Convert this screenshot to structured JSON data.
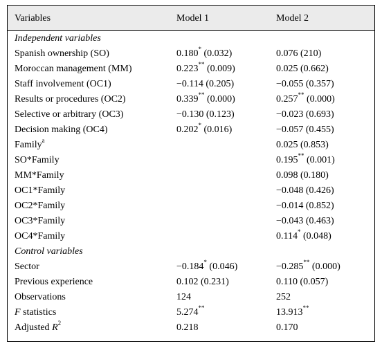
{
  "header": {
    "col1": "Variables",
    "col2": "Model 1",
    "col3": "Model 2"
  },
  "rows": [
    {
      "type": "section",
      "label": "Independent variables"
    },
    {
      "label": "Spanish ownership (SO)",
      "m1": "0.180",
      "m1_sup": "*",
      "m1_p": " (0.032)",
      "m2": "0.076 (210)",
      "m2_sup": "",
      "m2_p": ""
    },
    {
      "label": "Moroccan management (MM)",
      "m1": "0.223",
      "m1_sup": "**",
      "m1_p": " (0.009)",
      "m2": "0.025 (0.662)",
      "m2_sup": "",
      "m2_p": ""
    },
    {
      "label": "Staff involvement (OC1)",
      "m1": "−0.114 (0.205)",
      "m1_sup": "",
      "m1_p": "",
      "m2": "−0.055 (0.357)",
      "m2_sup": "",
      "m2_p": ""
    },
    {
      "label": "Results or procedures (OC2)",
      "m1": "0.339",
      "m1_sup": "**",
      "m1_p": " (0.000)",
      "m2": "0.257",
      "m2_sup": "**",
      "m2_p": " (0.000)"
    },
    {
      "label": "Selective or arbitrary (OC3)",
      "m1": "−0.130 (0.123)",
      "m1_sup": "",
      "m1_p": "",
      "m2": "−0.023 (0.693)",
      "m2_sup": "",
      "m2_p": ""
    },
    {
      "label": "Decision making (OC4)",
      "m1": "0.202",
      "m1_sup": "*",
      "m1_p": " (0.016)",
      "m2": "−0.057 (0.455)",
      "m2_sup": "",
      "m2_p": ""
    },
    {
      "label": "Family",
      "label_sup": "a",
      "m1": "",
      "m1_sup": "",
      "m1_p": "",
      "m2": "0.025 (0.853)",
      "m2_sup": "",
      "m2_p": ""
    },
    {
      "label": "SO*Family",
      "m1": "",
      "m1_sup": "",
      "m1_p": "",
      "m2": "0.195",
      "m2_sup": "**",
      "m2_p": " (0.001)"
    },
    {
      "label": "MM*Family",
      "m1": "",
      "m1_sup": "",
      "m1_p": "",
      "m2": "0.098 (0.180)",
      "m2_sup": "",
      "m2_p": ""
    },
    {
      "label": "OC1*Family",
      "m1": "",
      "m1_sup": "",
      "m1_p": "",
      "m2": "−0.048 (0.426)",
      "m2_sup": "",
      "m2_p": ""
    },
    {
      "label": "OC2*Family",
      "m1": "",
      "m1_sup": "",
      "m1_p": "",
      "m2": "−0.014 (0.852)",
      "m2_sup": "",
      "m2_p": ""
    },
    {
      "label": "OC3*Family",
      "m1": "",
      "m1_sup": "",
      "m1_p": "",
      "m2": "−0.043 (0.463)",
      "m2_sup": "",
      "m2_p": ""
    },
    {
      "label": "OC4*Family",
      "m1": "",
      "m1_sup": "",
      "m1_p": "",
      "m2": "0.114",
      "m2_sup": "*",
      "m2_p": " (0.048)"
    },
    {
      "type": "section",
      "label": "Control variables"
    },
    {
      "label": "Sector",
      "m1": "−0.184",
      "m1_sup": "*",
      "m1_p": " (0.046)",
      "m2": "−0.285",
      "m2_sup": "**",
      "m2_p": " (0.000)"
    },
    {
      "label": "Previous experience",
      "m1": "0.102 (0.231)",
      "m1_sup": "",
      "m1_p": "",
      "m2": "0.110 (0.057)",
      "m2_sup": "",
      "m2_p": ""
    },
    {
      "label": "Observations",
      "m1": "124",
      "m1_sup": "",
      "m1_p": "",
      "m2": "252",
      "m2_sup": "",
      "m2_p": ""
    },
    {
      "label_italic": "F",
      "label": " statistics",
      "m1": "5.274",
      "m1_sup": "**",
      "m1_p": "",
      "m2": "13.913",
      "m2_sup": "**",
      "m2_p": ""
    },
    {
      "label": "Adjusted ",
      "label_italic_end": "R",
      "label_sup": "2",
      "m1": "0.218",
      "m1_sup": "",
      "m1_p": "",
      "m2": "0.170",
      "m2_sup": "",
      "m2_p": ""
    }
  ]
}
